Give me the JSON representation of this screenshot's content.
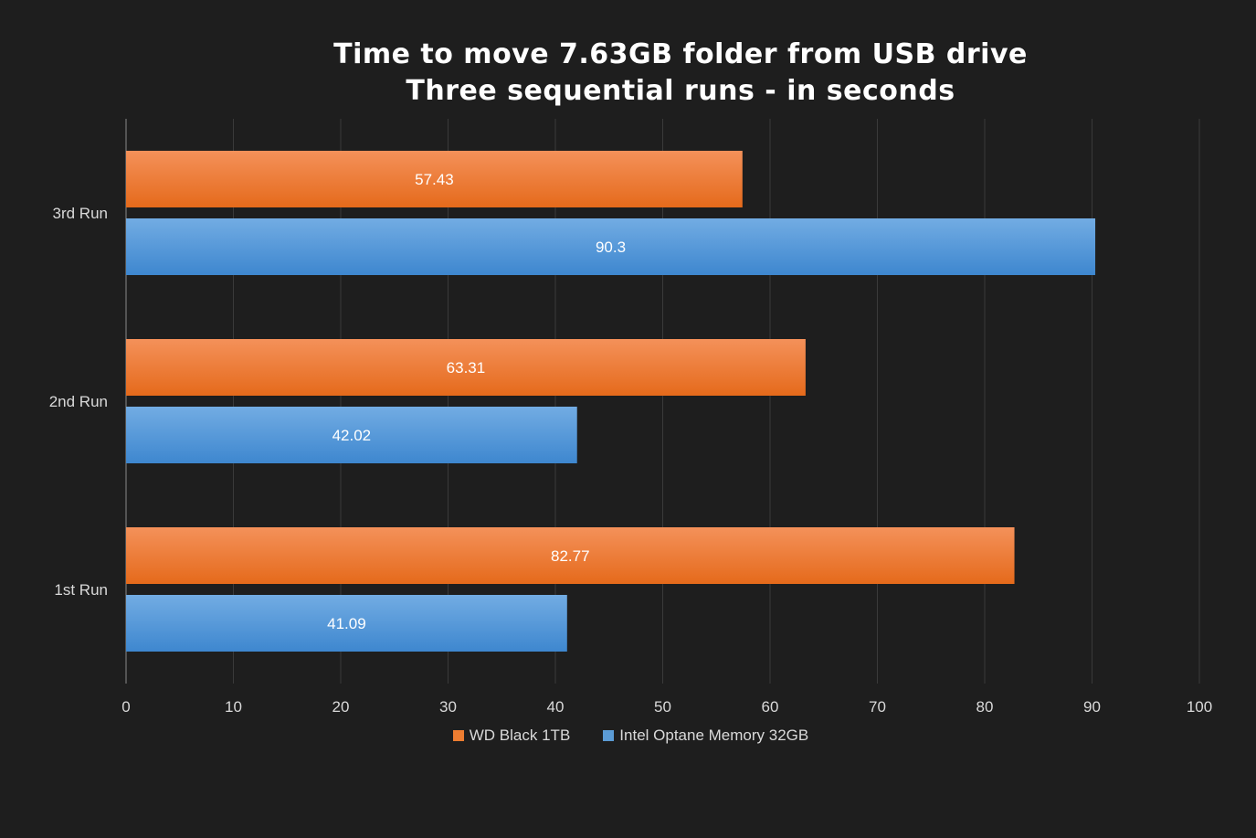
{
  "chart_data": {
    "type": "bar",
    "orientation": "horizontal",
    "title": "Time to move 7.63GB folder from USB drive",
    "subtitle": "Three sequential runs - in seconds",
    "categories": [
      "3rd Run",
      "2nd Run",
      "1st Run"
    ],
    "series": [
      {
        "name": "WD Black 1TB",
        "color": "#ed7d31",
        "values": [
          57.43,
          63.31,
          82.77
        ]
      },
      {
        "name": "Intel Optane Memory 32GB",
        "color": "#5b9bd5",
        "values": [
          90.3,
          42.02,
          41.09
        ]
      }
    ],
    "xlim": [
      0,
      100
    ],
    "xticks": [
      0,
      10,
      20,
      30,
      40,
      50,
      60,
      70,
      80,
      90,
      100
    ],
    "grid": true,
    "legend": "bottom",
    "data_labels": true
  }
}
